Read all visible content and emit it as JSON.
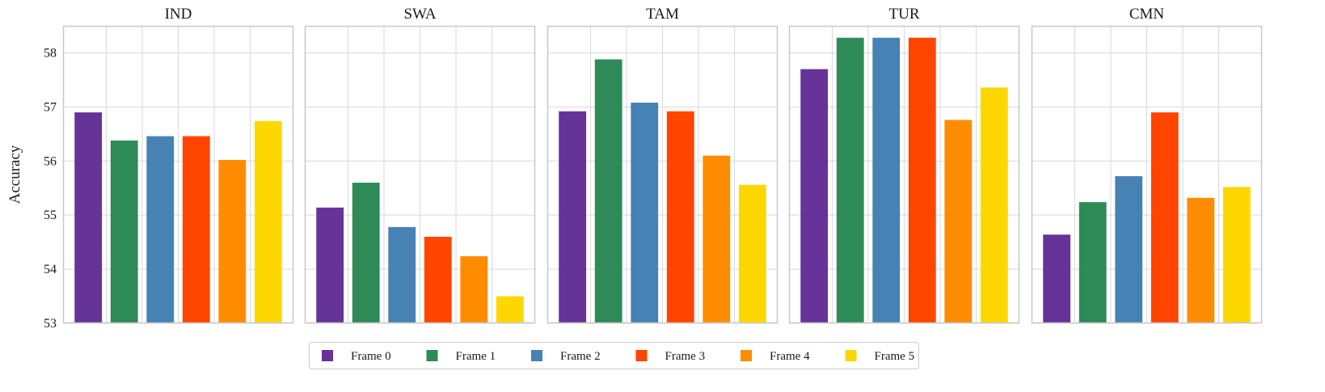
{
  "chart_data": {
    "type": "bar",
    "ylabel": "Accuracy",
    "ylim": [
      53,
      58.5
    ],
    "yticks": [
      53,
      54,
      55,
      56,
      57,
      58
    ],
    "grid": true,
    "series_names": [
      "Frame 0",
      "Frame 1",
      "Frame 2",
      "Frame 3",
      "Frame 4",
      "Frame 5"
    ],
    "colors": [
      "#663399",
      "#2e8b57",
      "#4682b4",
      "#ff4500",
      "#ff8c00",
      "#ffd700"
    ],
    "legend_position": "bottom-center",
    "panels": [
      {
        "title": "IND",
        "values": [
          56.9,
          56.38,
          56.46,
          56.46,
          56.02,
          56.74
        ]
      },
      {
        "title": "SWA",
        "values": [
          55.14,
          55.6,
          54.78,
          54.6,
          54.24,
          53.5
        ]
      },
      {
        "title": "TAM",
        "values": [
          56.92,
          57.88,
          57.08,
          56.92,
          56.1,
          55.56
        ]
      },
      {
        "title": "TUR",
        "values": [
          57.7,
          58.28,
          58.28,
          58.28,
          56.76,
          57.36
        ]
      },
      {
        "title": "CMN",
        "values": [
          54.64,
          55.24,
          55.72,
          56.9,
          55.32,
          55.52
        ]
      }
    ]
  }
}
